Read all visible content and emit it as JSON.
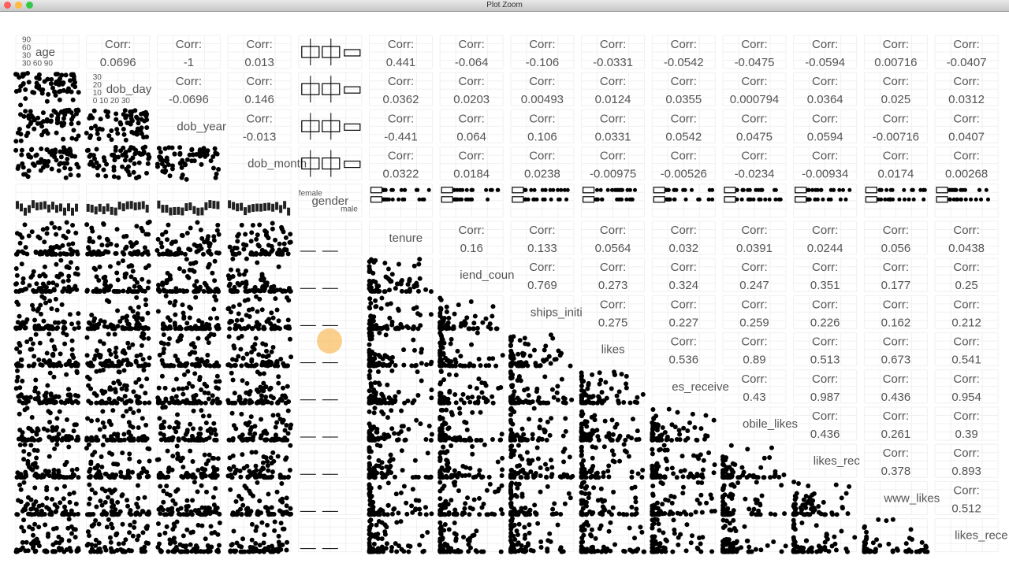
{
  "window": {
    "title": "Plot Zoom"
  },
  "corr_label": "Corr:",
  "variables": [
    "age",
    "dob_day",
    "dob_year",
    "dob_month",
    "gender",
    "tenure",
    "iend_coun",
    "ships_initi",
    "likes",
    "es_receive",
    "obile_likes",
    "likes_rec",
    "www_likes",
    "likes_rece"
  ],
  "gender_levels": [
    "female",
    "male"
  ],
  "age_ticks": {
    "left": [
      "90",
      "60",
      "30"
    ],
    "bottom": "30 60 90"
  },
  "dob_day_ticks": {
    "left": [
      "30",
      "20",
      "10"
    ],
    "bottom": "0 10 20 30"
  },
  "correlations": [
    [
      0.0696,
      -1,
      0.013,
      0.441,
      -0.064,
      -0.106,
      -0.0331,
      -0.0542,
      -0.0475,
      -0.0594,
      0.00716,
      -0.0407
    ],
    [
      -0.0696,
      0.146,
      0.0362,
      0.0203,
      0.00493,
      0.0124,
      0.0355,
      0.000794,
      0.0364,
      0.025,
      0.0312
    ],
    [
      -0.013,
      -0.441,
      0.064,
      0.106,
      0.0331,
      0.0542,
      0.0475,
      0.0594,
      -0.00716,
      0.0407
    ],
    [
      0.0322,
      0.0184,
      0.0238,
      -0.00975,
      -0.00526,
      -0.0234,
      -0.00934,
      0.0174,
      0.00268
    ],
    [
      0.16,
      0.133,
      0.0564,
      0.032,
      0.0391,
      0.0244,
      0.056,
      0.0438
    ],
    [
      0.769,
      0.273,
      0.324,
      0.247,
      0.351,
      0.177,
      0.25
    ],
    [
      0.275,
      0.227,
      0.259,
      0.226,
      0.162,
      0.212
    ],
    [
      0.536,
      0.89,
      0.513,
      0.673,
      0.541
    ],
    [
      0.43,
      0.987,
      0.436,
      0.954
    ],
    [
      0.436,
      0.261,
      0.39
    ],
    [
      0.378,
      0.893
    ],
    [
      0.512
    ]
  ]
}
